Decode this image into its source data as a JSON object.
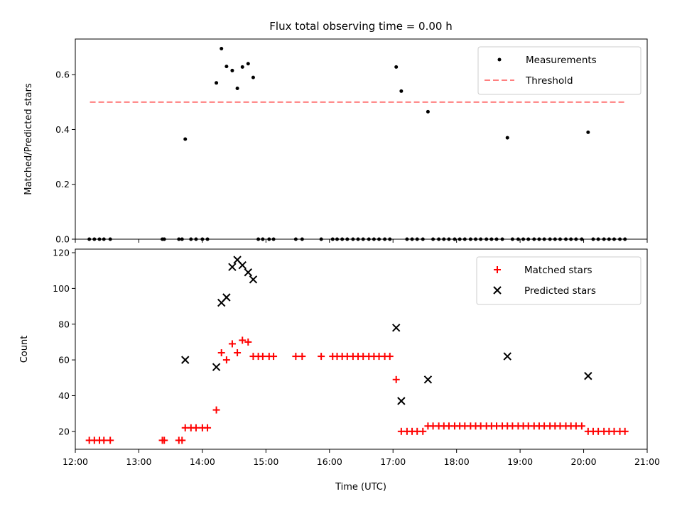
{
  "chart_data": [
    {
      "type": "scatter",
      "panel": "top",
      "title": "Flux total observing time = 0.00 h",
      "xlabel": "",
      "ylabel": "Matched/Predicted stars",
      "xlim": [
        12.0,
        21.0
      ],
      "ylim": [
        0.0,
        0.73
      ],
      "yticks": [
        0.0,
        0.2,
        0.4,
        0.6
      ],
      "ytick_labels": [
        "0.0",
        "0.2",
        "0.4",
        "0.6"
      ],
      "grid": false,
      "legend": "top-right",
      "threshold": {
        "name": "Threshold",
        "value": 0.5,
        "x": [
          12.23,
          20.65
        ],
        "color": "#ff7f7f"
      },
      "series": [
        {
          "name": "Measurements",
          "color": "#000000",
          "x": [
            12.22,
            12.3,
            12.38,
            12.45,
            12.55,
            13.37,
            13.4,
            13.63,
            13.68,
            13.73,
            13.82,
            13.9,
            14.0,
            14.08,
            14.22,
            14.3,
            14.38,
            14.47,
            14.55,
            14.63,
            14.72,
            14.8,
            14.88,
            14.95,
            15.05,
            15.12,
            15.47,
            15.57,
            15.87,
            16.05,
            16.12,
            16.2,
            16.28,
            16.37,
            16.45,
            16.53,
            16.62,
            16.7,
            16.78,
            16.87,
            16.95,
            17.05,
            17.13,
            17.22,
            17.3,
            17.38,
            17.47,
            17.55,
            17.63,
            17.72,
            17.8,
            17.88,
            17.97,
            18.05,
            18.13,
            18.22,
            18.3,
            18.38,
            18.47,
            18.55,
            18.63,
            18.72,
            18.8,
            18.88,
            18.97,
            19.05,
            19.13,
            19.22,
            19.3,
            19.38,
            19.47,
            19.55,
            19.63,
            19.72,
            19.8,
            19.88,
            19.97,
            20.07,
            20.15,
            20.23,
            20.32,
            20.4,
            20.48,
            20.57,
            20.65
          ],
          "y": [
            0,
            0,
            0,
            0,
            0,
            0,
            0,
            0,
            0,
            0.365,
            0,
            0,
            0,
            0,
            0.57,
            0.695,
            0.63,
            0.615,
            0.55,
            0.628,
            0.64,
            0.59,
            0,
            0,
            0,
            0,
            0,
            0,
            0,
            0,
            0,
            0,
            0,
            0,
            0,
            0,
            0,
            0,
            0,
            0,
            0,
            0.628,
            0.54,
            0,
            0,
            0,
            0,
            0.465,
            0,
            0,
            0,
            0,
            0,
            0,
            0,
            0,
            0,
            0,
            0,
            0,
            0,
            0,
            0.37,
            0,
            0,
            0,
            0,
            0,
            0,
            0,
            0,
            0,
            0,
            0,
            0,
            0,
            0,
            0.39,
            0,
            0,
            0,
            0,
            0,
            0,
            0
          ]
        }
      ]
    },
    {
      "type": "scatter",
      "panel": "bottom",
      "title": "",
      "xlabel": "Time (UTC)",
      "ylabel": "Count",
      "xlim": [
        12.0,
        21.0
      ],
      "ylim": [
        10,
        122
      ],
      "yticks": [
        20,
        40,
        60,
        80,
        100,
        120
      ],
      "ytick_labels": [
        "20",
        "40",
        "60",
        "80",
        "100",
        "120"
      ],
      "xticks": [
        12,
        13,
        14,
        15,
        16,
        17,
        18,
        19,
        20,
        21
      ],
      "xtick_labels": [
        "12:00",
        "13:00",
        "14:00",
        "15:00",
        "16:00",
        "17:00",
        "18:00",
        "19:00",
        "20:00",
        "21:00"
      ],
      "grid": false,
      "legend": "top-right",
      "series": [
        {
          "name": "Matched stars",
          "marker": "+",
          "color": "#ff0000",
          "x": [
            12.22,
            12.3,
            12.38,
            12.45,
            12.55,
            13.37,
            13.4,
            13.63,
            13.68,
            13.73,
            13.82,
            13.9,
            14.0,
            14.08,
            14.22,
            14.3,
            14.38,
            14.47,
            14.55,
            14.63,
            14.72,
            14.8,
            14.88,
            14.95,
            15.05,
            15.12,
            15.47,
            15.57,
            15.87,
            16.05,
            16.12,
            16.2,
            16.28,
            16.37,
            16.45,
            16.53,
            16.62,
            16.7,
            16.78,
            16.87,
            16.95,
            17.05,
            17.13,
            17.22,
            17.3,
            17.38,
            17.47,
            17.55,
            17.63,
            17.72,
            17.8,
            17.88,
            17.97,
            18.05,
            18.13,
            18.22,
            18.3,
            18.38,
            18.47,
            18.55,
            18.63,
            18.72,
            18.8,
            18.88,
            18.97,
            19.05,
            19.13,
            19.22,
            19.3,
            19.38,
            19.47,
            19.55,
            19.63,
            19.72,
            19.8,
            19.88,
            19.97,
            20.07,
            20.15,
            20.23,
            20.32,
            20.4,
            20.48,
            20.57,
            20.65
          ],
          "y": [
            15,
            15,
            15,
            15,
            15,
            15,
            15,
            15,
            15,
            22,
            22,
            22,
            22,
            22,
            32,
            64,
            60,
            69,
            64,
            71,
            70,
            62,
            62,
            62,
            62,
            62,
            62,
            62,
            62,
            62,
            62,
            62,
            62,
            62,
            62,
            62,
            62,
            62,
            62,
            62,
            62,
            49,
            20,
            20,
            20,
            20,
            20,
            23,
            23,
            23,
            23,
            23,
            23,
            23,
            23,
            23,
            23,
            23,
            23,
            23,
            23,
            23,
            23,
            23,
            23,
            23,
            23,
            23,
            23,
            23,
            23,
            23,
            23,
            23,
            23,
            23,
            23,
            20,
            20,
            20,
            20,
            20,
            20,
            20,
            20
          ]
        },
        {
          "name": "Predicted stars",
          "marker": "x",
          "color": "#000000",
          "x": [
            13.73,
            14.22,
            14.3,
            14.38,
            14.47,
            14.55,
            14.63,
            14.72,
            14.8,
            17.05,
            17.13,
            17.55,
            18.8,
            20.07
          ],
          "y": [
            60,
            56,
            92,
            95,
            112,
            116,
            113,
            109,
            105,
            78,
            37,
            49,
            62,
            51
          ]
        }
      ]
    }
  ]
}
